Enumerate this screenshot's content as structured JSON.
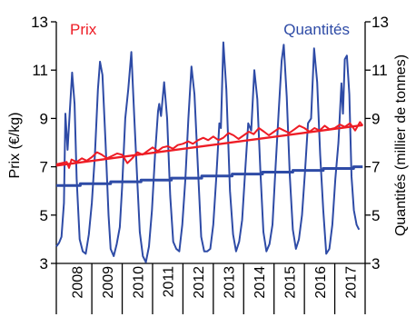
{
  "chart_data": {
    "type": "line",
    "y_left": {
      "label": "Prix (€/kg)",
      "ticks": [
        3,
        5,
        7,
        9,
        11,
        13
      ],
      "range": [
        3,
        13
      ]
    },
    "y_right": {
      "label": "Quantités (millier de tonnes)",
      "ticks": [
        3,
        5,
        7,
        9,
        11,
        13
      ],
      "range": [
        3,
        13
      ]
    },
    "x": {
      "years": [
        "2008",
        "2009",
        "2010",
        "2011",
        "2012",
        "2013",
        "2014",
        "2015",
        "2016",
        "2017"
      ],
      "range": [
        2007.83,
        2018.0
      ]
    },
    "colors": {
      "prix": "#ee1c25",
      "quantites": "#2e4ba6",
      "axis": "#000000"
    },
    "series": [
      {
        "name": "Prix",
        "axis": "left",
        "points": [
          [
            2007.83,
            7.1
          ],
          [
            2008.0,
            7.15
          ],
          [
            2008.17,
            7.2
          ],
          [
            2008.25,
            6.95
          ],
          [
            2008.33,
            7.3
          ],
          [
            2008.5,
            7.2
          ],
          [
            2008.67,
            7.35
          ],
          [
            2008.83,
            7.25
          ],
          [
            2009.0,
            7.4
          ],
          [
            2009.17,
            7.6
          ],
          [
            2009.33,
            7.5
          ],
          [
            2009.5,
            7.35
          ],
          [
            2009.67,
            7.45
          ],
          [
            2009.83,
            7.55
          ],
          [
            2010.0,
            7.5
          ],
          [
            2010.17,
            7.15
          ],
          [
            2010.33,
            7.35
          ],
          [
            2010.5,
            7.6
          ],
          [
            2010.67,
            7.5
          ],
          [
            2010.83,
            7.65
          ],
          [
            2011.0,
            7.8
          ],
          [
            2011.17,
            7.65
          ],
          [
            2011.33,
            7.8
          ],
          [
            2011.5,
            7.85
          ],
          [
            2011.67,
            7.75
          ],
          [
            2011.83,
            7.9
          ],
          [
            2012.0,
            7.95
          ],
          [
            2012.17,
            8.05
          ],
          [
            2012.33,
            7.95
          ],
          [
            2012.5,
            8.1
          ],
          [
            2012.67,
            8.2
          ],
          [
            2012.83,
            8.1
          ],
          [
            2013.0,
            8.25
          ],
          [
            2013.17,
            8.1
          ],
          [
            2013.33,
            8.2
          ],
          [
            2013.5,
            8.4
          ],
          [
            2013.67,
            8.3
          ],
          [
            2013.83,
            8.15
          ],
          [
            2014.0,
            8.3
          ],
          [
            2014.17,
            8.45
          ],
          [
            2014.33,
            8.35
          ],
          [
            2014.5,
            8.6
          ],
          [
            2014.67,
            8.45
          ],
          [
            2014.83,
            8.3
          ],
          [
            2015.0,
            8.45
          ],
          [
            2015.17,
            8.6
          ],
          [
            2015.33,
            8.5
          ],
          [
            2015.5,
            8.4
          ],
          [
            2015.67,
            8.55
          ],
          [
            2015.83,
            8.7
          ],
          [
            2016.0,
            8.6
          ],
          [
            2016.17,
            8.45
          ],
          [
            2016.33,
            8.6
          ],
          [
            2016.5,
            8.5
          ],
          [
            2016.67,
            8.7
          ],
          [
            2016.83,
            8.55
          ],
          [
            2017.0,
            8.6
          ],
          [
            2017.17,
            8.75
          ],
          [
            2017.33,
            8.65
          ],
          [
            2017.5,
            8.8
          ],
          [
            2017.67,
            8.5
          ],
          [
            2017.83,
            8.85
          ],
          [
            2017.92,
            8.7
          ]
        ],
        "trend": [
          [
            2007.83,
            7.05
          ],
          [
            2017.92,
            8.72
          ]
        ]
      },
      {
        "name": "Quantités",
        "axis": "right",
        "points": [
          [
            2007.83,
            3.7
          ],
          [
            2007.92,
            3.85
          ],
          [
            2008.0,
            4.1
          ],
          [
            2008.08,
            5.5
          ],
          [
            2008.13,
            9.2
          ],
          [
            2008.2,
            7.7
          ],
          [
            2008.27,
            9.2
          ],
          [
            2008.35,
            10.9
          ],
          [
            2008.43,
            9.6
          ],
          [
            2008.5,
            6.5
          ],
          [
            2008.6,
            4.0
          ],
          [
            2008.7,
            3.5
          ],
          [
            2008.8,
            3.4
          ],
          [
            2008.9,
            4.2
          ],
          [
            2009.0,
            5.5
          ],
          [
            2009.1,
            7.5
          ],
          [
            2009.2,
            10.2
          ],
          [
            2009.27,
            11.35
          ],
          [
            2009.35,
            10.8
          ],
          [
            2009.45,
            8.0
          ],
          [
            2009.55,
            5.0
          ],
          [
            2009.62,
            3.6
          ],
          [
            2009.72,
            3.3
          ],
          [
            2009.82,
            3.8
          ],
          [
            2009.92,
            4.5
          ],
          [
            2010.0,
            6.2
          ],
          [
            2010.1,
            9.0
          ],
          [
            2010.2,
            10.2
          ],
          [
            2010.3,
            11.75
          ],
          [
            2010.4,
            9.0
          ],
          [
            2010.5,
            6.3
          ],
          [
            2010.58,
            4.3
          ],
          [
            2010.68,
            3.3
          ],
          [
            2010.78,
            3.05
          ],
          [
            2010.88,
            3.7
          ],
          [
            2010.98,
            5.2
          ],
          [
            2011.08,
            7.5
          ],
          [
            2011.18,
            9.3
          ],
          [
            2011.22,
            9.6
          ],
          [
            2011.28,
            9.1
          ],
          [
            2011.38,
            10.5
          ],
          [
            2011.48,
            9.0
          ],
          [
            2011.58,
            5.8
          ],
          [
            2011.68,
            3.9
          ],
          [
            2011.78,
            3.6
          ],
          [
            2011.88,
            3.5
          ],
          [
            2011.98,
            4.6
          ],
          [
            2012.08,
            6.5
          ],
          [
            2012.18,
            9.0
          ],
          [
            2012.28,
            11.15
          ],
          [
            2012.38,
            10.0
          ],
          [
            2012.5,
            6.8
          ],
          [
            2012.6,
            4.1
          ],
          [
            2012.7,
            3.5
          ],
          [
            2012.8,
            3.5
          ],
          [
            2012.9,
            3.6
          ],
          [
            2013.0,
            4.6
          ],
          [
            2013.1,
            6.6
          ],
          [
            2013.2,
            8.8
          ],
          [
            2013.25,
            8.6
          ],
          [
            2013.33,
            12.15
          ],
          [
            2013.43,
            10.2
          ],
          [
            2013.55,
            6.0
          ],
          [
            2013.65,
            4.2
          ],
          [
            2013.75,
            3.5
          ],
          [
            2013.85,
            3.9
          ],
          [
            2013.95,
            4.8
          ],
          [
            2014.05,
            6.8
          ],
          [
            2014.15,
            8.8
          ],
          [
            2014.25,
            8.5
          ],
          [
            2014.35,
            11.0
          ],
          [
            2014.45,
            9.8
          ],
          [
            2014.55,
            6.8
          ],
          [
            2014.65,
            4.3
          ],
          [
            2014.75,
            3.5
          ],
          [
            2014.85,
            3.8
          ],
          [
            2014.95,
            4.6
          ],
          [
            2015.05,
            7.0
          ],
          [
            2015.15,
            9.2
          ],
          [
            2015.25,
            11.4
          ],
          [
            2015.32,
            12.05
          ],
          [
            2015.42,
            9.9
          ],
          [
            2015.52,
            6.6
          ],
          [
            2015.62,
            4.4
          ],
          [
            2015.72,
            3.6
          ],
          [
            2015.82,
            4.0
          ],
          [
            2015.92,
            5.0
          ],
          [
            2016.02,
            6.8
          ],
          [
            2016.12,
            8.8
          ],
          [
            2016.22,
            9.0
          ],
          [
            2016.32,
            11.9
          ],
          [
            2016.42,
            10.5
          ],
          [
            2016.52,
            7.5
          ],
          [
            2016.62,
            5.2
          ],
          [
            2016.72,
            3.4
          ],
          [
            2016.82,
            3.6
          ],
          [
            2016.92,
            4.6
          ],
          [
            2017.02,
            6.5
          ],
          [
            2017.12,
            8.0
          ],
          [
            2017.22,
            10.45
          ],
          [
            2017.27,
            9.2
          ],
          [
            2017.33,
            11.45
          ],
          [
            2017.4,
            11.6
          ],
          [
            2017.48,
            10.0
          ],
          [
            2017.55,
            6.6
          ],
          [
            2017.63,
            5.2
          ],
          [
            2017.72,
            4.6
          ],
          [
            2017.8,
            4.4
          ]
        ],
        "trend": [
          [
            2007.83,
            6.22
          ],
          [
            2008.62,
            6.22
          ],
          [
            2008.62,
            6.3
          ],
          [
            2009.62,
            6.3
          ],
          [
            2009.62,
            6.38
          ],
          [
            2010.62,
            6.38
          ],
          [
            2010.62,
            6.45
          ],
          [
            2011.62,
            6.45
          ],
          [
            2011.62,
            6.53
          ],
          [
            2012.62,
            6.53
          ],
          [
            2012.62,
            6.62
          ],
          [
            2013.62,
            6.62
          ],
          [
            2013.62,
            6.7
          ],
          [
            2014.62,
            6.7
          ],
          [
            2014.62,
            6.78
          ],
          [
            2015.62,
            6.78
          ],
          [
            2015.62,
            6.85
          ],
          [
            2016.62,
            6.85
          ],
          [
            2016.62,
            6.93
          ],
          [
            2017.62,
            6.93
          ],
          [
            2017.62,
            7.0
          ],
          [
            2017.92,
            7.0
          ]
        ]
      }
    ]
  }
}
